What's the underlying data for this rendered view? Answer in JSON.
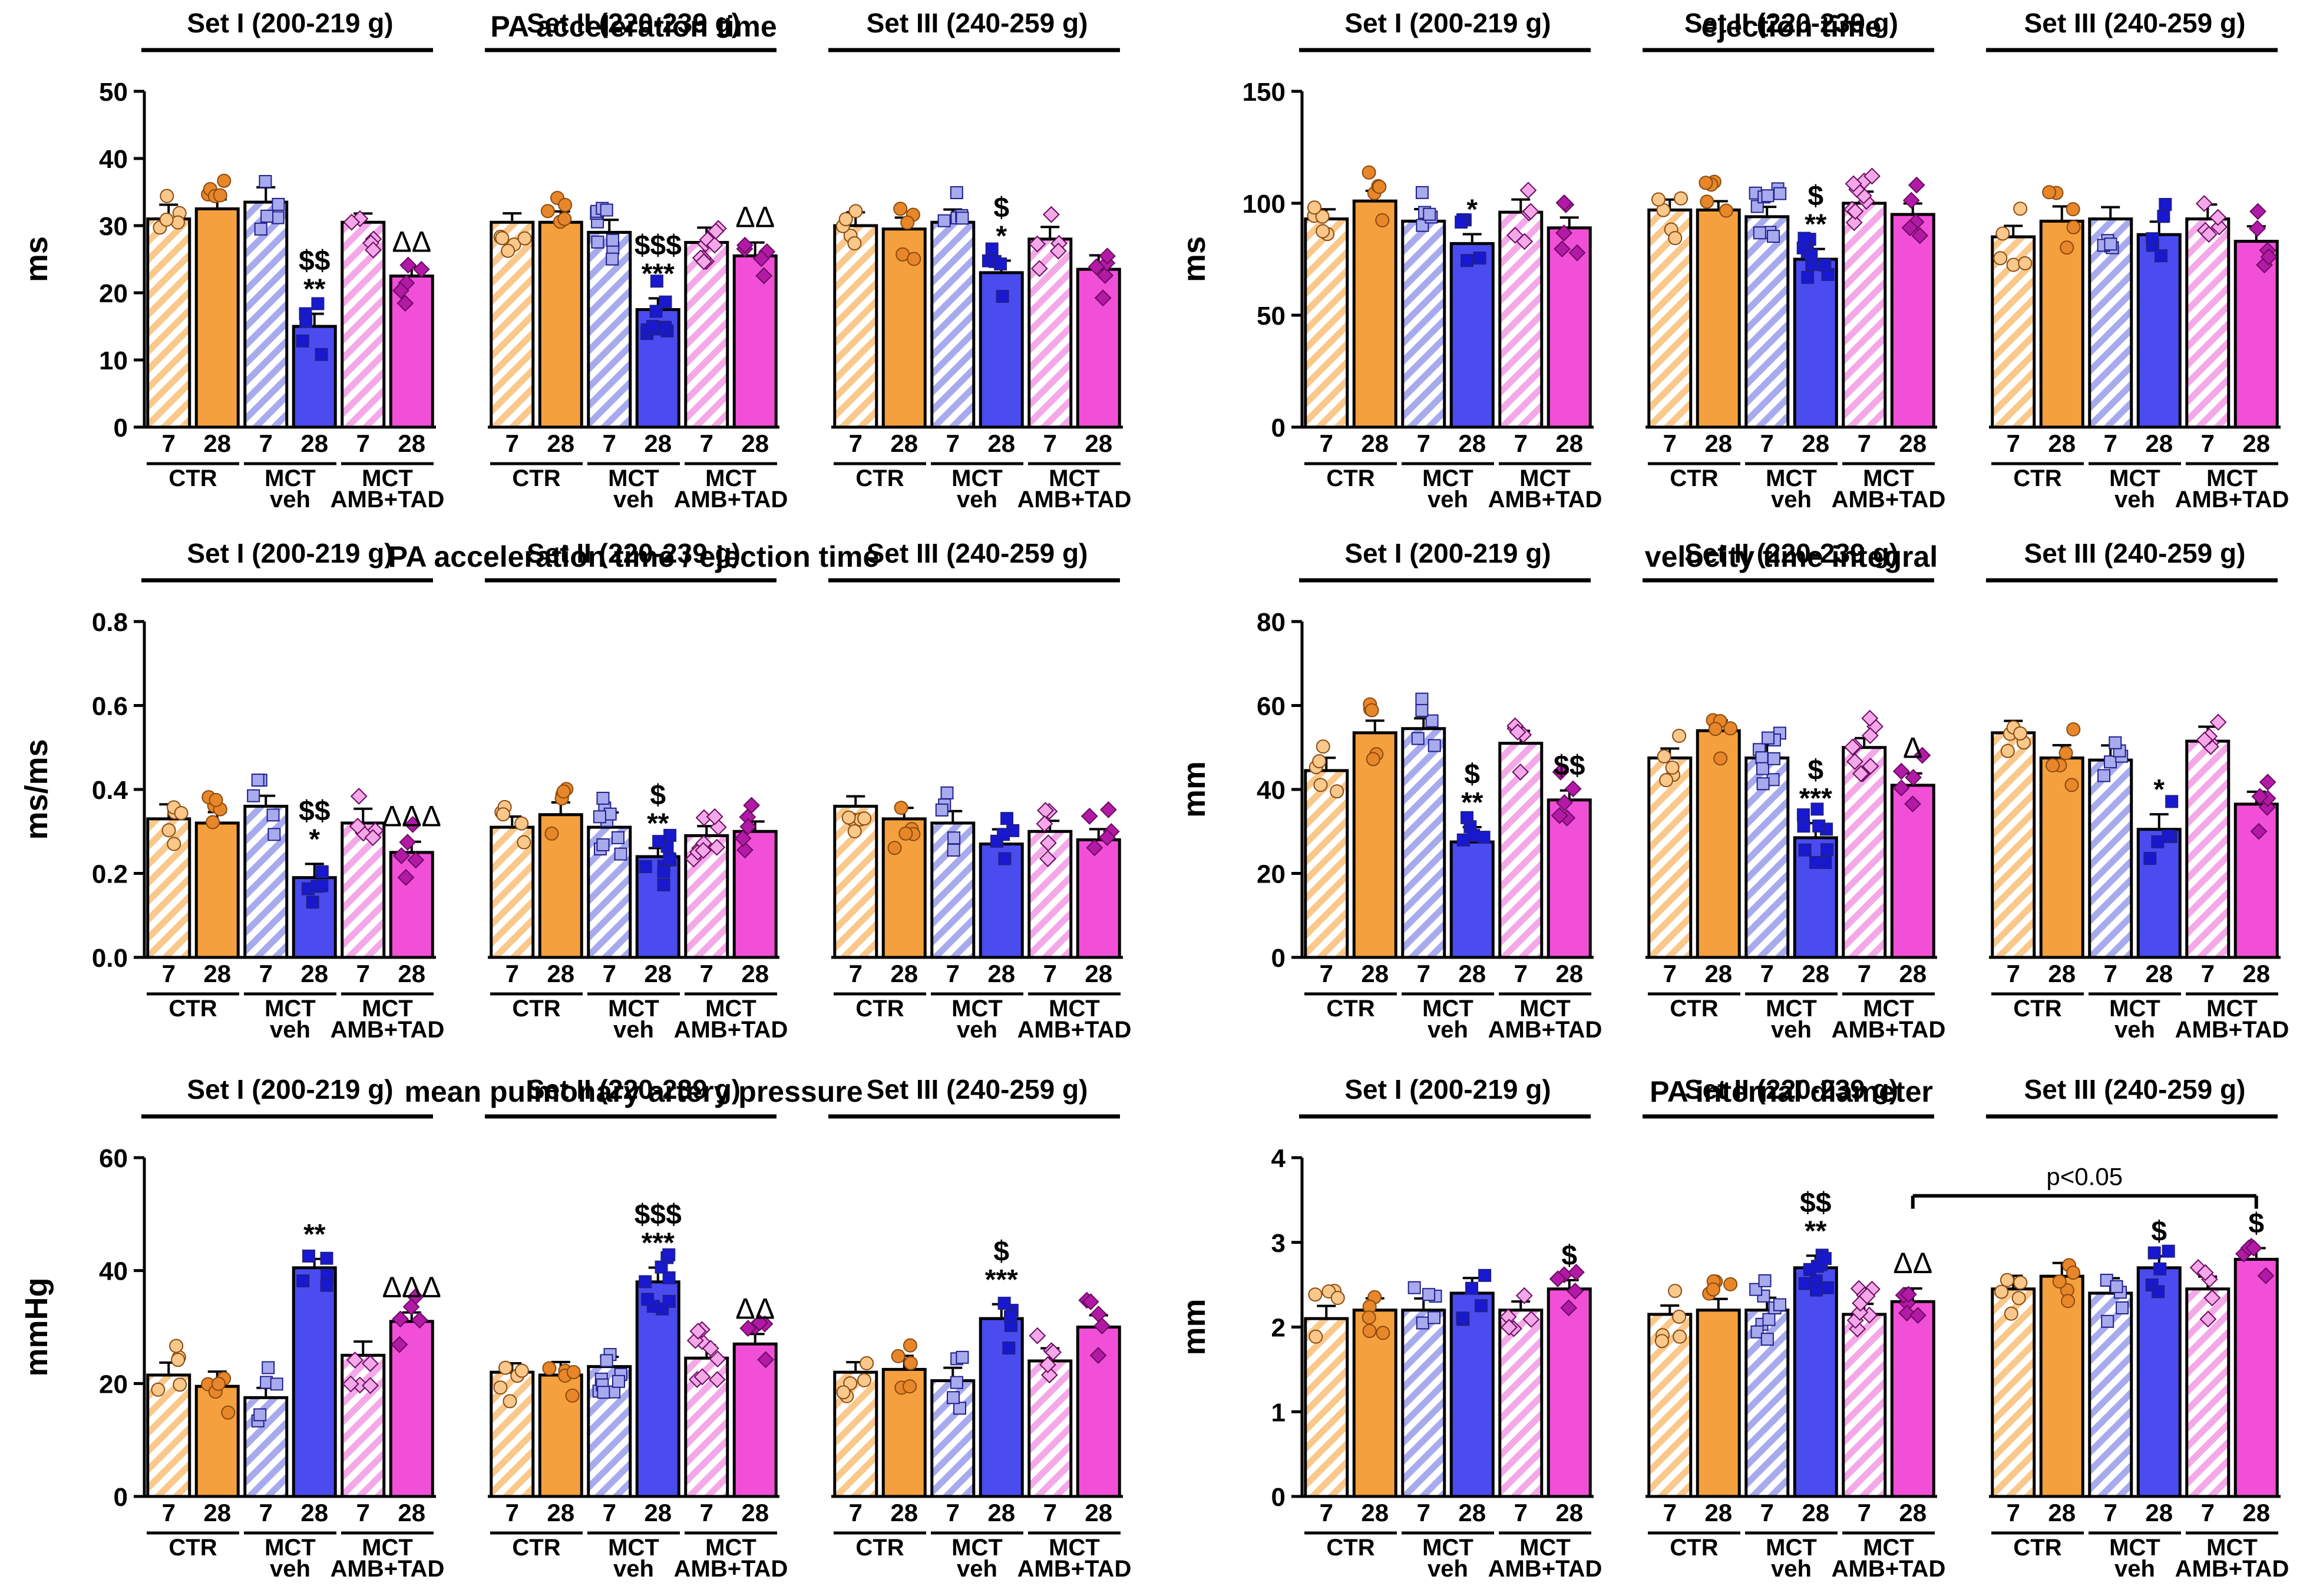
{
  "figure": {
    "colors": {
      "orange": "#F4A03E",
      "orange_light": "#F9C88A",
      "orange_dot": "#E8862A",
      "blue": "#4A4CF0",
      "blue_light": "#A8AAEE",
      "blue_dot": "#1818D0",
      "magenta": "#F24FD8",
      "magenta_light": "#F4A8E8",
      "magenta_dot": "#B21AA6",
      "ink": "#000000"
    },
    "set_labels": [
      "Set I (200-219 g)",
      "Set II (220-239 g)",
      "Set III (240-259 g)"
    ],
    "day_labels": [
      "7",
      "28"
    ],
    "group_labels": {
      "ctr": [
        "CTR"
      ],
      "veh": [
        "MCT",
        "veh"
      ],
      "amb": [
        "MCT",
        "AMB+TAD"
      ]
    }
  },
  "chart_data": [
    {
      "type": "bar",
      "title": "PA acceleration time",
      "ylabel": "ms",
      "ylim": [
        0,
        50
      ],
      "ticks": [
        "0",
        "10",
        "20",
        "30",
        "40",
        "50"
      ],
      "tick_values": [
        0,
        10,
        20,
        30,
        40,
        50
      ],
      "series_order": [
        "CTR d7",
        "CTR d28",
        "MCT veh d7",
        "MCT veh d28",
        "MCT AMB+TAD d7",
        "MCT AMB+TAD d28"
      ],
      "sets": [
        {
          "name": "Set I (200-219 g)",
          "values": [
            31,
            32.5,
            33.5,
            15,
            30.5,
            22.5
          ],
          "sig": [
            "",
            "",
            "",
            "$$\n**",
            "",
            "ΔΔ"
          ]
        },
        {
          "name": "Set II (220-239 g)",
          "values": [
            30.5,
            30.5,
            29,
            17.5,
            27.5,
            25.5
          ],
          "sig": [
            "",
            "",
            "",
            "$$$\n***",
            "",
            "ΔΔ"
          ]
        },
        {
          "name": "Set III (240-259 g)",
          "values": [
            30,
            29.5,
            30.5,
            23,
            28,
            23.5
          ],
          "sig": [
            "",
            "",
            "",
            "$\n*",
            "",
            ""
          ]
        }
      ]
    },
    {
      "type": "bar",
      "title": "ejection time",
      "ylabel": "ms",
      "ylim": [
        0,
        150
      ],
      "ticks": [
        "0",
        "50",
        "100",
        "150"
      ],
      "tick_values": [
        0,
        50,
        100,
        150
      ],
      "series_order": [
        "CTR d7",
        "CTR d28",
        "MCT veh d7",
        "MCT veh d28",
        "MCT AMB+TAD d7",
        "MCT AMB+TAD d28"
      ],
      "sets": [
        {
          "name": "Set I (200-219 g)",
          "values": [
            93,
            101,
            92,
            82,
            96,
            89
          ],
          "sig": [
            "",
            "",
            "",
            "*",
            "",
            ""
          ]
        },
        {
          "name": "Set II (220-239 g)",
          "values": [
            97,
            97,
            94,
            75,
            100,
            95
          ],
          "sig": [
            "",
            "",
            "",
            "$\n**",
            "",
            ""
          ]
        },
        {
          "name": "Set III (240-259 g)",
          "values": [
            85,
            92,
            93,
            86,
            93,
            83
          ],
          "sig": [
            "",
            "",
            "",
            "",
            "",
            ""
          ]
        }
      ]
    },
    {
      "type": "bar",
      "title": "PA acceleration time / ejection time",
      "ylabel": "ms/ms",
      "ylim": [
        0,
        0.8
      ],
      "ticks": [
        "0.0",
        "0.2",
        "0.4",
        "0.6",
        "0.8"
      ],
      "tick_values": [
        0,
        0.2,
        0.4,
        0.6,
        0.8
      ],
      "series_order": [
        "CTR d7",
        "CTR d28",
        "MCT veh d7",
        "MCT veh d28",
        "MCT AMB+TAD d7",
        "MCT AMB+TAD d28"
      ],
      "sets": [
        {
          "name": "Set I (200-219 g)",
          "values": [
            0.33,
            0.32,
            0.36,
            0.19,
            0.32,
            0.25
          ],
          "sig": [
            "",
            "",
            "",
            "$$\n*",
            "",
            "ΔΔΔ"
          ]
        },
        {
          "name": "Set II (220-239 g)",
          "values": [
            0.31,
            0.34,
            0.31,
            0.24,
            0.29,
            0.3
          ],
          "sig": [
            "",
            "",
            "",
            "$\n**",
            "",
            ""
          ]
        },
        {
          "name": "Set III (240-259 g)",
          "values": [
            0.36,
            0.33,
            0.32,
            0.27,
            0.3,
            0.28
          ],
          "sig": [
            "",
            "",
            "",
            "",
            "",
            ""
          ]
        }
      ]
    },
    {
      "type": "bar",
      "title": "velocity time integral",
      "ylabel": "mm",
      "ylim": [
        0,
        80
      ],
      "ticks": [
        "0",
        "20",
        "40",
        "60",
        "80"
      ],
      "tick_values": [
        0,
        20,
        40,
        60,
        80
      ],
      "series_order": [
        "CTR d7",
        "CTR d28",
        "MCT veh d7",
        "MCT veh d28",
        "MCT AMB+TAD d7",
        "MCT AMB+TAD d28"
      ],
      "sets": [
        {
          "name": "Set I (200-219 g)",
          "values": [
            44.5,
            53.5,
            54.5,
            27.5,
            51,
            37.5
          ],
          "sig": [
            "",
            "",
            "",
            "$\n**",
            "",
            "$$"
          ]
        },
        {
          "name": "Set II (220-239 g)",
          "values": [
            47.5,
            54,
            47.5,
            28.5,
            50,
            41
          ],
          "sig": [
            "",
            "",
            "",
            "$\n***",
            "",
            "Δ"
          ]
        },
        {
          "name": "Set III (240-259 g)",
          "values": [
            53.5,
            47.5,
            47,
            30.5,
            51.5,
            36.5
          ],
          "sig": [
            "",
            "",
            "",
            "*",
            "",
            ""
          ]
        }
      ]
    },
    {
      "type": "bar",
      "title": "mean pulmonary artery pressure",
      "ylabel": "mmHg",
      "ylim": [
        0,
        60
      ],
      "ticks": [
        "0",
        "20",
        "40",
        "60"
      ],
      "tick_values": [
        0,
        20,
        40,
        60
      ],
      "series_order": [
        "CTR d7",
        "CTR d28",
        "MCT veh d7",
        "MCT veh d28",
        "MCT AMB+TAD d7",
        "MCT AMB+TAD d28"
      ],
      "sets": [
        {
          "name": "Set I (200-219 g)",
          "values": [
            21.5,
            19.5,
            17.5,
            40.5,
            25,
            31
          ],
          "sig": [
            "",
            "",
            "",
            "**",
            "",
            "ΔΔΔ"
          ]
        },
        {
          "name": "Set II (220-239 g)",
          "values": [
            22,
            21.5,
            23,
            38,
            24.5,
            27
          ],
          "sig": [
            "",
            "",
            "",
            "$$$\n***",
            "",
            "ΔΔ"
          ]
        },
        {
          "name": "Set III (240-259 g)",
          "values": [
            22,
            22.5,
            20.5,
            31.5,
            24,
            30
          ],
          "sig": [
            "",
            "",
            "",
            "$\n***",
            "",
            ""
          ]
        }
      ]
    },
    {
      "type": "bar",
      "title": "PA internal diameter",
      "ylabel": "mm",
      "ylim": [
        0,
        4
      ],
      "ticks": [
        "0",
        "1",
        "2",
        "3",
        "4"
      ],
      "tick_values": [
        0,
        1,
        2,
        3,
        4
      ],
      "series_order": [
        "CTR d7",
        "CTR d28",
        "MCT veh d7",
        "MCT veh d28",
        "MCT AMB+TAD d7",
        "MCT AMB+TAD d28"
      ],
      "annotation": "p<0.05",
      "sets": [
        {
          "name": "Set I (200-219 g)",
          "values": [
            2.1,
            2.2,
            2.2,
            2.4,
            2.2,
            2.45
          ],
          "sig": [
            "",
            "",
            "",
            "",
            "",
            "$"
          ]
        },
        {
          "name": "Set II (220-239 g)",
          "values": [
            2.15,
            2.2,
            2.2,
            2.7,
            2.15,
            2.3
          ],
          "sig": [
            "",
            "",
            "",
            "$$\n**",
            "",
            "ΔΔ"
          ]
        },
        {
          "name": "Set III (240-259 g)",
          "values": [
            2.45,
            2.6,
            2.4,
            2.7,
            2.45,
            2.8
          ],
          "sig": [
            "",
            "",
            "",
            "$",
            "",
            "$"
          ]
        }
      ]
    }
  ]
}
